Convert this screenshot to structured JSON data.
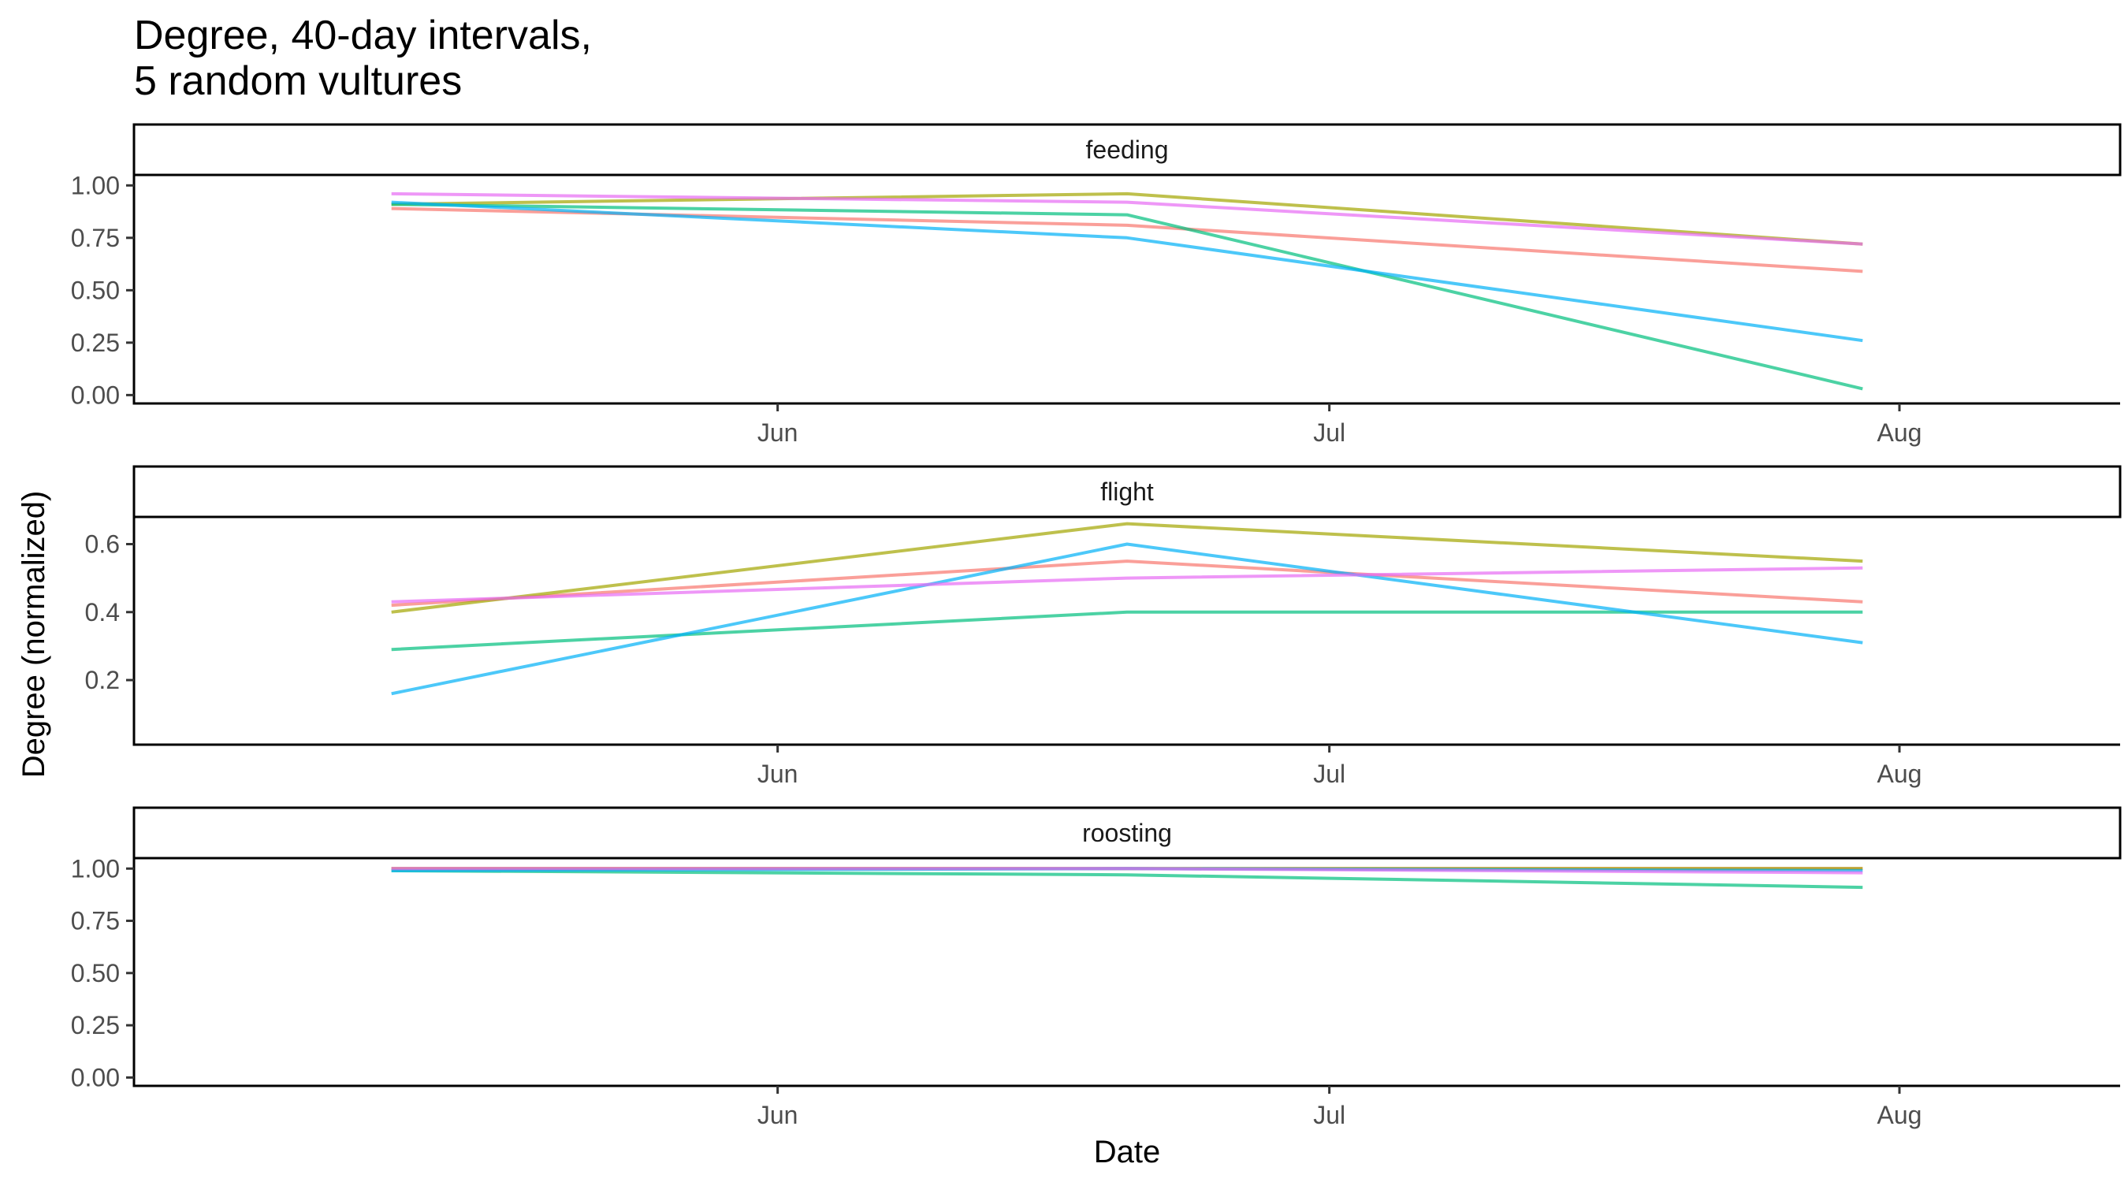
{
  "chart_data": {
    "type": "line",
    "title": [
      "Degree, 40-day intervals,",
      "5 random vultures"
    ],
    "xlabel": "Date",
    "ylabel": "Degree (normalized)",
    "x_tick_labels": [
      "Jun",
      "Jul",
      "Aug"
    ],
    "x": [
      "2023-05-11",
      "2023-06-20",
      "2023-07-30"
    ],
    "grid": false,
    "legend": "none",
    "colors": [
      "#F8766D",
      "#A3A500",
      "#00BF7D",
      "#00B0F6",
      "#E76BF3"
    ],
    "panels": [
      {
        "strip": "feeding",
        "y_tick_labels": [
          "0.00",
          "0.25",
          "0.50",
          "0.75",
          "1.00"
        ],
        "ylim": [
          -0.04,
          1.05
        ],
        "series": [
          {
            "values": [
              0.89,
              0.81,
              0.59
            ]
          },
          {
            "values": [
              0.91,
              0.96,
              0.72
            ]
          },
          {
            "values": [
              0.91,
              0.86,
              0.03
            ]
          },
          {
            "values": [
              0.92,
              0.75,
              0.26
            ]
          },
          {
            "values": [
              0.96,
              0.92,
              0.72
            ]
          }
        ]
      },
      {
        "strip": "flight",
        "y_tick_labels": [
          "0.2",
          "0.4",
          "0.6"
        ],
        "ylim": [
          0.01,
          0.68
        ],
        "series": [
          {
            "values": [
              0.42,
              0.55,
              0.43
            ]
          },
          {
            "values": [
              0.4,
              0.66,
              0.55
            ]
          },
          {
            "values": [
              0.29,
              0.4,
              0.4
            ]
          },
          {
            "values": [
              0.16,
              0.6,
              0.31
            ]
          },
          {
            "values": [
              0.43,
              0.5,
              0.53
            ]
          }
        ]
      },
      {
        "strip": "roosting",
        "y_tick_labels": [
          "0.00",
          "0.25",
          "0.50",
          "0.75",
          "1.00"
        ],
        "ylim": [
          -0.04,
          1.05
        ],
        "series": [
          {
            "values": [
              1.0,
              1.0,
              1.0
            ]
          },
          {
            "values": [
              1.0,
              1.0,
              1.0
            ]
          },
          {
            "values": [
              0.99,
              0.97,
              0.91
            ]
          },
          {
            "values": [
              0.99,
              1.0,
              0.99
            ]
          },
          {
            "values": [
              1.0,
              1.0,
              0.98
            ]
          }
        ]
      }
    ]
  }
}
